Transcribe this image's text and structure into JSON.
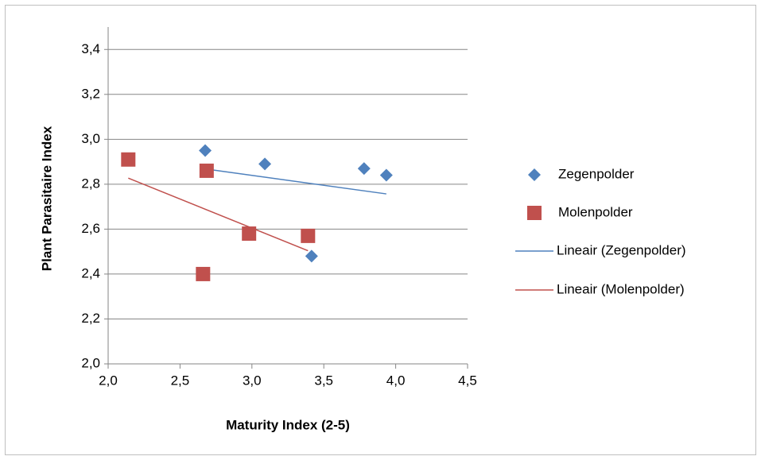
{
  "chart_data": {
    "type": "scatter",
    "xlabel": "Maturity Index (2-5)",
    "ylabel": "Plant Parasitaire Index",
    "xlim": [
      2.0,
      4.5
    ],
    "xticks": [
      {
        "value": 2.0,
        "label": "2,0"
      },
      {
        "value": 2.5,
        "label": "2,5"
      },
      {
        "value": 3.0,
        "label": "3,0"
      },
      {
        "value": 3.5,
        "label": "3,5"
      },
      {
        "value": 4.0,
        "label": "4,0"
      },
      {
        "value": 4.5,
        "label": "4,5"
      }
    ],
    "ylim": [
      2.0,
      3.5
    ],
    "yticks": [
      {
        "value": 2.0,
        "label": "2,0"
      },
      {
        "value": 2.2,
        "label": "2,2"
      },
      {
        "value": 2.4,
        "label": "2,4"
      },
      {
        "value": 2.6,
        "label": "2,6"
      },
      {
        "value": 2.8,
        "label": "2,8"
      },
      {
        "value": 3.0,
        "label": "3,0"
      },
      {
        "value": 3.2,
        "label": "3,2"
      },
      {
        "value": 3.4,
        "label": "3,4"
      }
    ],
    "grid": true,
    "legend": "right",
    "trendline": "linear",
    "series": [
      {
        "name": "Zegenpolder",
        "marker": "diamond",
        "color": "#4f81bd",
        "trendline_name": "Lineair (Zegenpolder)",
        "x": [
          2.675,
          3.09,
          3.78,
          3.935,
          3.415
        ],
        "values": [
          2.95,
          2.89,
          2.87,
          2.84,
          2.48
        ]
      },
      {
        "name": "Molenpolder",
        "marker": "square",
        "color": "#c0504d",
        "trendline_name": "Lineair (Molenpolder)",
        "x": [
          2.14,
          2.685,
          2.98,
          3.39,
          2.66
        ],
        "values": [
          2.91,
          2.86,
          2.58,
          2.57,
          2.4
        ]
      }
    ]
  }
}
